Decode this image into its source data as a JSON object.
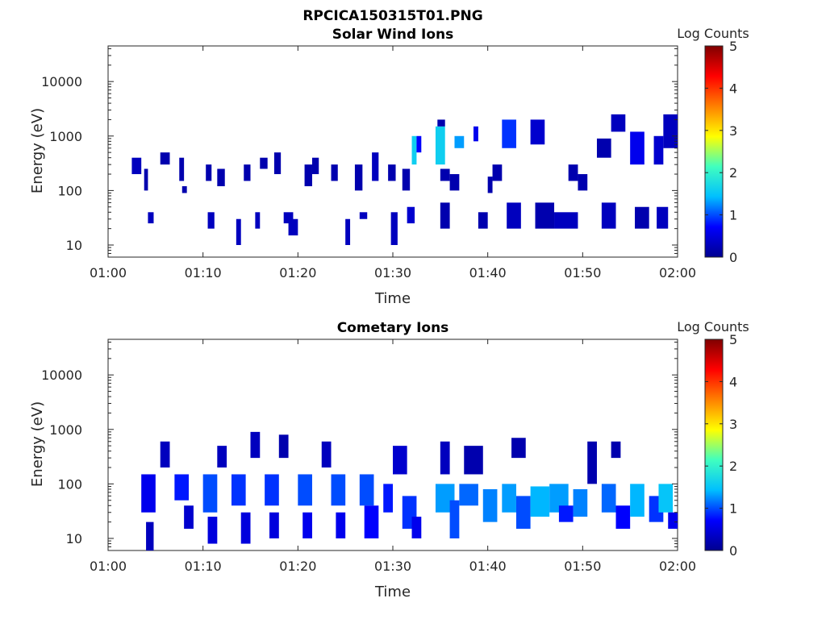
{
  "figure": {
    "main_title": "RPCICA150315T01.PNG",
    "colorbar_label": "Log Counts",
    "colorbar_ticks": [
      "0",
      "1",
      "2",
      "3",
      "4",
      "5"
    ],
    "colormap": [
      "#00008f",
      "#0000ff",
      "#00bfff",
      "#40ffbf",
      "#ffff00",
      "#ff8000",
      "#ff0000",
      "#800000"
    ]
  },
  "chart_data": [
    {
      "type": "heatmap",
      "title": "Solar Wind Ions",
      "xlabel": "Time",
      "ylabel": "Energy (eV)",
      "x_ticks": [
        "01:00",
        "01:10",
        "01:20",
        "01:30",
        "01:40",
        "01:50",
        "02:00"
      ],
      "xlim_minutes": [
        0,
        60
      ],
      "y_ticks": [
        "10",
        "100",
        "1000",
        "10000"
      ],
      "ylim": [
        6,
        45000
      ],
      "yscale": "log",
      "clim": [
        0,
        5
      ],
      "cells": [
        [
          2.5,
          3.5,
          200,
          400,
          0.3
        ],
        [
          3.8,
          4.2,
          100,
          250,
          0.2
        ],
        [
          4.2,
          4.8,
          25,
          40,
          0.3
        ],
        [
          5.5,
          6.5,
          300,
          500,
          0.2
        ],
        [
          7.5,
          8.0,
          150,
          400,
          0.2
        ],
        [
          7.8,
          8.3,
          90,
          120,
          0.2
        ],
        [
          10.3,
          10.9,
          150,
          300,
          0.2
        ],
        [
          10.5,
          11.2,
          20,
          40,
          0.3
        ],
        [
          11.5,
          12.3,
          120,
          250,
          0.2
        ],
        [
          13.5,
          14.0,
          10,
          30,
          0.3
        ],
        [
          14.3,
          15.0,
          150,
          300,
          0.2
        ],
        [
          15.5,
          16.0,
          20,
          40,
          0.3
        ],
        [
          16.0,
          16.8,
          250,
          400,
          0.2
        ],
        [
          17.5,
          18.2,
          200,
          500,
          0.2
        ],
        [
          18.5,
          19.5,
          25,
          40,
          0.3
        ],
        [
          19.0,
          20.0,
          15,
          30,
          0.3
        ],
        [
          20.7,
          21.5,
          120,
          300,
          0.2
        ],
        [
          21.5,
          22.2,
          200,
          400,
          0.2
        ],
        [
          23.5,
          24.2,
          150,
          300,
          0.2
        ],
        [
          25.0,
          25.5,
          10,
          30,
          0.3
        ],
        [
          26.0,
          26.8,
          100,
          300,
          0.2
        ],
        [
          26.5,
          27.3,
          30,
          40,
          0.3
        ],
        [
          27.8,
          28.5,
          150,
          500,
          0.3
        ],
        [
          29.5,
          30.3,
          150,
          300,
          0.2
        ],
        [
          29.8,
          30.5,
          10,
          40,
          0.3
        ],
        [
          31.0,
          31.8,
          100,
          250,
          0.2
        ],
        [
          31.5,
          32.3,
          25,
          50,
          0.4
        ],
        [
          32.0,
          32.5,
          300,
          1000,
          1.6
        ],
        [
          32.5,
          33.0,
          500,
          1000,
          0.7
        ],
        [
          34.5,
          35.5,
          300,
          1500,
          1.6
        ],
        [
          34.7,
          35.5,
          1500,
          2000,
          0.2
        ],
        [
          35.0,
          36.0,
          150,
          250,
          0.2
        ],
        [
          35.0,
          36.0,
          20,
          60,
          0.2
        ],
        [
          36.0,
          37.0,
          100,
          200,
          0.2
        ],
        [
          36.5,
          37.5,
          600,
          1000,
          1.3
        ],
        [
          38.5,
          39.0,
          800,
          1500,
          0.6
        ],
        [
          39.0,
          40.0,
          20,
          40,
          0.2
        ],
        [
          40.0,
          40.5,
          90,
          180,
          0.2
        ],
        [
          40.5,
          41.5,
          150,
          300,
          0.2
        ],
        [
          41.5,
          43.0,
          600,
          2000,
          0.9
        ],
        [
          42.0,
          43.5,
          20,
          60,
          0.3
        ],
        [
          44.5,
          46.0,
          700,
          2000,
          0.4
        ],
        [
          45.0,
          47.0,
          20,
          60,
          0.2
        ],
        [
          47.0,
          49.5,
          20,
          40,
          0.3
        ],
        [
          48.5,
          49.5,
          150,
          300,
          0.2
        ],
        [
          49.5,
          50.5,
          100,
          200,
          0.2
        ],
        [
          51.5,
          53.0,
          400,
          900,
          0.2
        ],
        [
          52.0,
          53.5,
          20,
          60,
          0.3
        ],
        [
          53.0,
          54.5,
          1200,
          2500,
          0.3
        ],
        [
          55.0,
          56.5,
          300,
          1200,
          0.6
        ],
        [
          55.5,
          57.0,
          20,
          50,
          0.2
        ],
        [
          57.5,
          58.5,
          300,
          1000,
          0.4
        ],
        [
          57.8,
          59.0,
          20,
          50,
          0.3
        ],
        [
          58.5,
          60.0,
          600,
          2500,
          0.3
        ]
      ]
    },
    {
      "type": "heatmap",
      "title": "Cometary Ions",
      "xlabel": "Time",
      "ylabel": "Energy (eV)",
      "x_ticks": [
        "01:00",
        "01:10",
        "01:20",
        "01:30",
        "01:40",
        "01:50",
        "02:00"
      ],
      "xlim_minutes": [
        0,
        60
      ],
      "y_ticks": [
        "10",
        "100",
        "1000",
        "10000"
      ],
      "ylim": [
        6,
        45000
      ],
      "yscale": "log",
      "clim": [
        0,
        5
      ],
      "cells": [
        [
          3.5,
          5.0,
          30,
          150,
          0.6
        ],
        [
          4.0,
          4.8,
          6,
          20,
          0.3
        ],
        [
          5.5,
          6.5,
          200,
          600,
          0.3
        ],
        [
          7.0,
          8.5,
          50,
          150,
          0.8
        ],
        [
          8.0,
          9.0,
          15,
          40,
          0.4
        ],
        [
          10.0,
          11.5,
          30,
          150,
          1.0
        ],
        [
          10.5,
          11.5,
          8,
          25,
          0.5
        ],
        [
          11.5,
          12.5,
          200,
          500,
          0.3
        ],
        [
          13.0,
          14.5,
          40,
          150,
          0.9
        ],
        [
          14.0,
          15.0,
          8,
          30,
          0.5
        ],
        [
          15.0,
          16.0,
          300,
          900,
          0.3
        ],
        [
          16.5,
          18.0,
          40,
          150,
          0.9
        ],
        [
          17.0,
          18.0,
          10,
          30,
          0.5
        ],
        [
          18.0,
          19.0,
          300,
          800,
          0.2
        ],
        [
          20.0,
          21.5,
          40,
          150,
          1.0
        ],
        [
          20.5,
          21.5,
          10,
          30,
          0.6
        ],
        [
          22.5,
          23.5,
          200,
          600,
          0.3
        ],
        [
          23.5,
          25.0,
          40,
          150,
          1.0
        ],
        [
          24.0,
          25.0,
          10,
          30,
          0.6
        ],
        [
          26.5,
          28.0,
          40,
          150,
          1.0
        ],
        [
          27.0,
          28.5,
          10,
          40,
          0.7
        ],
        [
          29.0,
          30.0,
          30,
          100,
          0.8
        ],
        [
          30.0,
          31.5,
          150,
          500,
          0.4
        ],
        [
          31.0,
          32.5,
          15,
          60,
          0.9
        ],
        [
          32.0,
          33.0,
          10,
          25,
          0.6
        ],
        [
          34.5,
          36.5,
          30,
          100,
          1.3
        ],
        [
          35.0,
          36.0,
          150,
          600,
          0.3
        ],
        [
          36.0,
          37.0,
          10,
          50,
          1.0
        ],
        [
          37.0,
          39.0,
          40,
          100,
          1.1
        ],
        [
          37.5,
          39.5,
          150,
          500,
          0.2
        ],
        [
          39.5,
          41.0,
          20,
          80,
          1.2
        ],
        [
          41.5,
          43.0,
          30,
          100,
          1.3
        ],
        [
          42.5,
          44.0,
          300,
          700,
          0.2
        ],
        [
          43.0,
          44.5,
          15,
          60,
          1.0
        ],
        [
          44.5,
          46.5,
          25,
          90,
          1.4
        ],
        [
          46.5,
          48.5,
          30,
          100,
          1.3
        ],
        [
          47.5,
          49.0,
          20,
          40,
          0.8
        ],
        [
          49.0,
          50.5,
          25,
          80,
          1.2
        ],
        [
          50.5,
          51.5,
          100,
          600,
          0.2
        ],
        [
          52.0,
          53.5,
          30,
          100,
          1.1
        ],
        [
          53.0,
          54.0,
          300,
          600,
          0.2
        ],
        [
          53.5,
          55.0,
          15,
          40,
          0.7
        ],
        [
          55.0,
          56.5,
          25,
          100,
          1.4
        ],
        [
          57.0,
          58.5,
          20,
          60,
          0.9
        ],
        [
          58.0,
          59.5,
          30,
          100,
          1.5
        ],
        [
          59.0,
          60.0,
          15,
          30,
          0.6
        ]
      ]
    }
  ]
}
